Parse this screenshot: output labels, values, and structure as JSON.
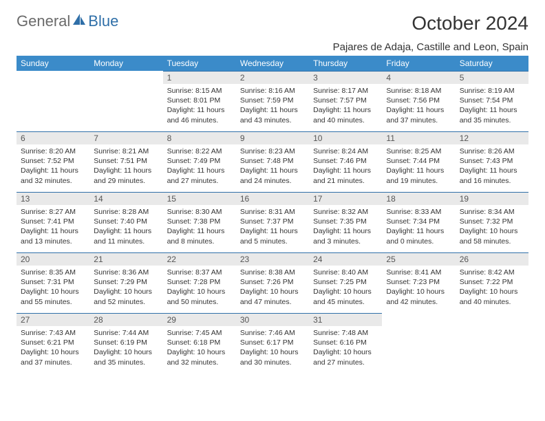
{
  "logo": {
    "text1": "General",
    "text2": "Blue"
  },
  "title": "October 2024",
  "location": "Pajares de Adaja, Castille and Leon, Spain",
  "colors": {
    "header_bg": "#3b8bc9",
    "header_text": "#ffffff",
    "daynum_bg": "#e9e9e9",
    "daynum_border": "#2f6fa8",
    "body_text": "#333333",
    "logo_gray": "#6a6a6a",
    "logo_blue": "#2f6fa8"
  },
  "weekdays": [
    "Sunday",
    "Monday",
    "Tuesday",
    "Wednesday",
    "Thursday",
    "Friday",
    "Saturday"
  ],
  "weeks": [
    [
      {
        "empty": true
      },
      {
        "empty": true
      },
      {
        "d": "1",
        "sr": "Sunrise: 8:15 AM",
        "ss": "Sunset: 8:01 PM",
        "dl1": "Daylight: 11 hours",
        "dl2": "and 46 minutes."
      },
      {
        "d": "2",
        "sr": "Sunrise: 8:16 AM",
        "ss": "Sunset: 7:59 PM",
        "dl1": "Daylight: 11 hours",
        "dl2": "and 43 minutes."
      },
      {
        "d": "3",
        "sr": "Sunrise: 8:17 AM",
        "ss": "Sunset: 7:57 PM",
        "dl1": "Daylight: 11 hours",
        "dl2": "and 40 minutes."
      },
      {
        "d": "4",
        "sr": "Sunrise: 8:18 AM",
        "ss": "Sunset: 7:56 PM",
        "dl1": "Daylight: 11 hours",
        "dl2": "and 37 minutes."
      },
      {
        "d": "5",
        "sr": "Sunrise: 8:19 AM",
        "ss": "Sunset: 7:54 PM",
        "dl1": "Daylight: 11 hours",
        "dl2": "and 35 minutes."
      }
    ],
    [
      {
        "d": "6",
        "sr": "Sunrise: 8:20 AM",
        "ss": "Sunset: 7:52 PM",
        "dl1": "Daylight: 11 hours",
        "dl2": "and 32 minutes."
      },
      {
        "d": "7",
        "sr": "Sunrise: 8:21 AM",
        "ss": "Sunset: 7:51 PM",
        "dl1": "Daylight: 11 hours",
        "dl2": "and 29 minutes."
      },
      {
        "d": "8",
        "sr": "Sunrise: 8:22 AM",
        "ss": "Sunset: 7:49 PM",
        "dl1": "Daylight: 11 hours",
        "dl2": "and 27 minutes."
      },
      {
        "d": "9",
        "sr": "Sunrise: 8:23 AM",
        "ss": "Sunset: 7:48 PM",
        "dl1": "Daylight: 11 hours",
        "dl2": "and 24 minutes."
      },
      {
        "d": "10",
        "sr": "Sunrise: 8:24 AM",
        "ss": "Sunset: 7:46 PM",
        "dl1": "Daylight: 11 hours",
        "dl2": "and 21 minutes."
      },
      {
        "d": "11",
        "sr": "Sunrise: 8:25 AM",
        "ss": "Sunset: 7:44 PM",
        "dl1": "Daylight: 11 hours",
        "dl2": "and 19 minutes."
      },
      {
        "d": "12",
        "sr": "Sunrise: 8:26 AM",
        "ss": "Sunset: 7:43 PM",
        "dl1": "Daylight: 11 hours",
        "dl2": "and 16 minutes."
      }
    ],
    [
      {
        "d": "13",
        "sr": "Sunrise: 8:27 AM",
        "ss": "Sunset: 7:41 PM",
        "dl1": "Daylight: 11 hours",
        "dl2": "and 13 minutes."
      },
      {
        "d": "14",
        "sr": "Sunrise: 8:28 AM",
        "ss": "Sunset: 7:40 PM",
        "dl1": "Daylight: 11 hours",
        "dl2": "and 11 minutes."
      },
      {
        "d": "15",
        "sr": "Sunrise: 8:30 AM",
        "ss": "Sunset: 7:38 PM",
        "dl1": "Daylight: 11 hours",
        "dl2": "and 8 minutes."
      },
      {
        "d": "16",
        "sr": "Sunrise: 8:31 AM",
        "ss": "Sunset: 7:37 PM",
        "dl1": "Daylight: 11 hours",
        "dl2": "and 5 minutes."
      },
      {
        "d": "17",
        "sr": "Sunrise: 8:32 AM",
        "ss": "Sunset: 7:35 PM",
        "dl1": "Daylight: 11 hours",
        "dl2": "and 3 minutes."
      },
      {
        "d": "18",
        "sr": "Sunrise: 8:33 AM",
        "ss": "Sunset: 7:34 PM",
        "dl1": "Daylight: 11 hours",
        "dl2": "and 0 minutes."
      },
      {
        "d": "19",
        "sr": "Sunrise: 8:34 AM",
        "ss": "Sunset: 7:32 PM",
        "dl1": "Daylight: 10 hours",
        "dl2": "and 58 minutes."
      }
    ],
    [
      {
        "d": "20",
        "sr": "Sunrise: 8:35 AM",
        "ss": "Sunset: 7:31 PM",
        "dl1": "Daylight: 10 hours",
        "dl2": "and 55 minutes."
      },
      {
        "d": "21",
        "sr": "Sunrise: 8:36 AM",
        "ss": "Sunset: 7:29 PM",
        "dl1": "Daylight: 10 hours",
        "dl2": "and 52 minutes."
      },
      {
        "d": "22",
        "sr": "Sunrise: 8:37 AM",
        "ss": "Sunset: 7:28 PM",
        "dl1": "Daylight: 10 hours",
        "dl2": "and 50 minutes."
      },
      {
        "d": "23",
        "sr": "Sunrise: 8:38 AM",
        "ss": "Sunset: 7:26 PM",
        "dl1": "Daylight: 10 hours",
        "dl2": "and 47 minutes."
      },
      {
        "d": "24",
        "sr": "Sunrise: 8:40 AM",
        "ss": "Sunset: 7:25 PM",
        "dl1": "Daylight: 10 hours",
        "dl2": "and 45 minutes."
      },
      {
        "d": "25",
        "sr": "Sunrise: 8:41 AM",
        "ss": "Sunset: 7:23 PM",
        "dl1": "Daylight: 10 hours",
        "dl2": "and 42 minutes."
      },
      {
        "d": "26",
        "sr": "Sunrise: 8:42 AM",
        "ss": "Sunset: 7:22 PM",
        "dl1": "Daylight: 10 hours",
        "dl2": "and 40 minutes."
      }
    ],
    [
      {
        "d": "27",
        "sr": "Sunrise: 7:43 AM",
        "ss": "Sunset: 6:21 PM",
        "dl1": "Daylight: 10 hours",
        "dl2": "and 37 minutes."
      },
      {
        "d": "28",
        "sr": "Sunrise: 7:44 AM",
        "ss": "Sunset: 6:19 PM",
        "dl1": "Daylight: 10 hours",
        "dl2": "and 35 minutes."
      },
      {
        "d": "29",
        "sr": "Sunrise: 7:45 AM",
        "ss": "Sunset: 6:18 PM",
        "dl1": "Daylight: 10 hours",
        "dl2": "and 32 minutes."
      },
      {
        "d": "30",
        "sr": "Sunrise: 7:46 AM",
        "ss": "Sunset: 6:17 PM",
        "dl1": "Daylight: 10 hours",
        "dl2": "and 30 minutes."
      },
      {
        "d": "31",
        "sr": "Sunrise: 7:48 AM",
        "ss": "Sunset: 6:16 PM",
        "dl1": "Daylight: 10 hours",
        "dl2": "and 27 minutes."
      },
      {
        "empty": true
      },
      {
        "empty": true
      }
    ]
  ]
}
